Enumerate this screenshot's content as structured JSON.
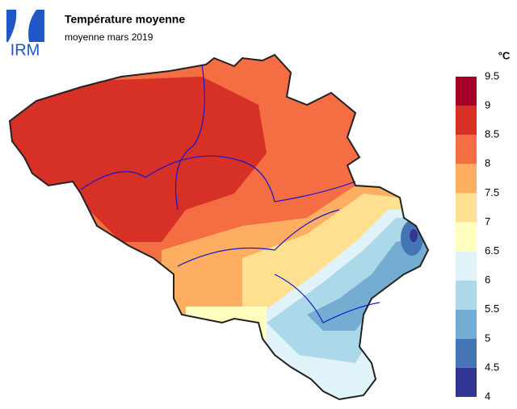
{
  "logo": "IRM",
  "title": "Température moyenne",
  "subtitle": "moyenne mars 2019",
  "unit": "°C",
  "colorbar": {
    "ticks": [
      4,
      4.5,
      5,
      5.5,
      6,
      6.5,
      7,
      7.5,
      8,
      8.5,
      9,
      9.5
    ],
    "colors": [
      "#313695",
      "#4575b4",
      "#74add1",
      "#abd9e9",
      "#e0f3f8",
      "#ffffbf",
      "#fee090",
      "#fdae61",
      "#f46d43",
      "#d73027",
      "#a50026"
    ]
  }
}
